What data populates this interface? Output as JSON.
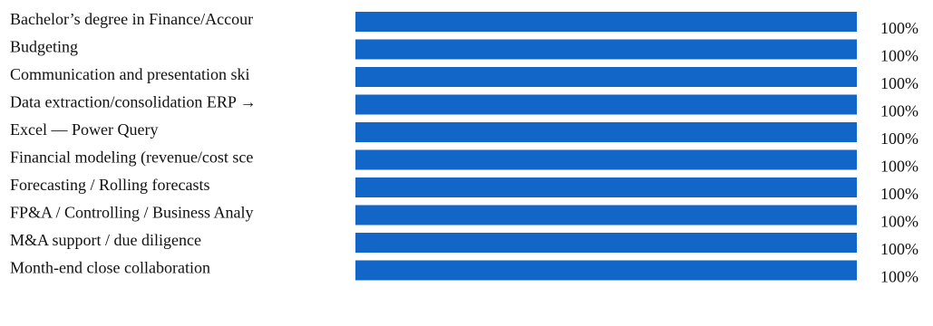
{
  "chart_data": {
    "type": "bar",
    "orientation": "horizontal",
    "categories": [
      "Bachelor’s degree in Finance/Accounting",
      "Budgeting",
      "Communication and presentation skills",
      "Data extraction/consolidation ERP → Excel",
      "Excel — Power Query",
      "Financial modeling (revenue/cost scenarios)",
      "Forecasting / Rolling forecasts",
      "FP&A / Controlling / Business Analysis",
      "M&A support / due diligence",
      "Month-end close collaboration"
    ],
    "visible_labels": [
      "Bachelor’s degree in Finance/Accour",
      "Budgeting",
      "Communication and presentation ski",
      "Data extraction/consolidation ERP →",
      "Excel — Power Query",
      "Financial modeling (revenue/cost sce",
      "Forecasting / Rolling forecasts",
      "FP&A / Controlling / Business Analy",
      "M&A support / due diligence",
      "Month-end close collaboration"
    ],
    "values": [
      100,
      100,
      100,
      100,
      100,
      100,
      100,
      100,
      100,
      100
    ],
    "value_labels": [
      "100%",
      "100%",
      "100%",
      "100%",
      "100%",
      "100%",
      "100%",
      "100%",
      "100%",
      "100%"
    ],
    "unit": "%",
    "xlim": [
      0,
      100
    ],
    "bar_color": "#1166c8",
    "grid": false,
    "legend": "none"
  }
}
